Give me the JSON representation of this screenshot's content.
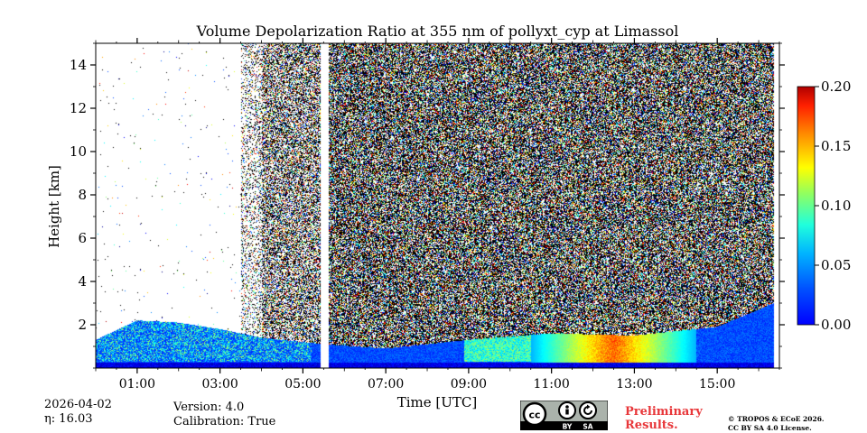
{
  "chart_data": {
    "type": "heatmap",
    "title": "Volume Depolarization Ratio at 355 nm of pollyxt_cyp at Limassol",
    "xlabel": "Time [UTC]",
    "ylabel": "Height [km]",
    "xlim": [
      0,
      16.5
    ],
    "ylim": [
      0,
      15
    ],
    "x_ticks": [
      1,
      3,
      5,
      7,
      9,
      11,
      13,
      15
    ],
    "x_tick_labels": [
      "01:00",
      "03:00",
      "05:00",
      "07:00",
      "09:00",
      "11:00",
      "13:00",
      "15:00"
    ],
    "y_ticks": [
      2,
      4,
      6,
      8,
      10,
      12,
      14
    ],
    "y_tick_labels": [
      "2",
      "4",
      "6",
      "8",
      "10",
      "12",
      "14"
    ],
    "colorbar": {
      "range": [
        0,
        0.2
      ],
      "ticks": [
        0,
        0.05,
        0.1,
        0.15,
        0.2
      ],
      "tick_labels": [
        "0.00",
        "0.05",
        "0.10",
        "0.15",
        "0.20"
      ],
      "colormap": "jet"
    },
    "boundary_layer_top_km": [
      {
        "time": 0.0,
        "height": 1.3
      },
      {
        "time": 1.0,
        "height": 2.2
      },
      {
        "time": 2.0,
        "height": 2.1
      },
      {
        "time": 3.0,
        "height": 1.8
      },
      {
        "time": 4.0,
        "height": 1.4
      },
      {
        "time": 5.0,
        "height": 1.2
      },
      {
        "time": 5.5,
        "height": 1.1
      },
      {
        "time": 7.0,
        "height": 0.9
      },
      {
        "time": 9.0,
        "height": 1.3
      },
      {
        "time": 11.0,
        "height": 1.6
      },
      {
        "time": 13.0,
        "height": 1.5
      },
      {
        "time": 15.0,
        "height": 1.9
      },
      {
        "time": 16.5,
        "height": 3.1
      }
    ],
    "dust_layer": {
      "time_start": 10.5,
      "time_end": 14.5,
      "height_top": 1.4,
      "depol_max": 0.17
    }
  },
  "meta": {
    "date": "2026-04-02",
    "eta_label": "η: 16.03",
    "version_label": "Version: 4.0",
    "calibration_label": "Calibration: True"
  },
  "footer": {
    "preliminary_line1": "Preliminary",
    "preliminary_line2": "Results.",
    "copyright_line1": "© TROPOS & ECoE 2026.",
    "copyright_line2": "CC BY SA 4.0 License.",
    "cc_badge_text": [
      "BY",
      "SA"
    ]
  }
}
